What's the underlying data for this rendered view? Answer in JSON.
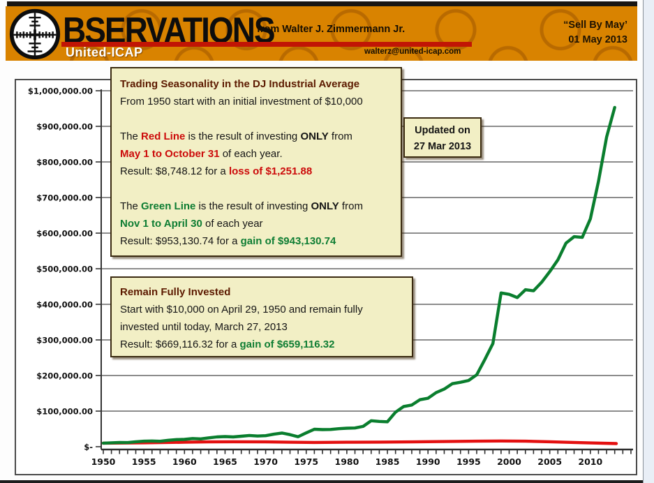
{
  "header": {
    "brand": "BSERVATIONS",
    "company": "United-ICAP",
    "byline": "from Walter J. Zimmermann Jr.",
    "email": "walterz@united-icap.com",
    "tagline": "“Sell By May’",
    "date": "01 May 2013"
  },
  "updated_box": {
    "line1": "Updated on",
    "line2": "27 Mar 2013"
  },
  "seasonality_box": {
    "lines": [
      [
        {
          "t": "Trading Seasonality in the DJ Industrial Average",
          "s": "title"
        }
      ],
      [
        {
          "t": "From 1950 start with an initial investment of $10,000",
          "s": "plain"
        }
      ],
      [],
      [
        {
          "t": "The ",
          "s": "plain"
        },
        {
          "t": "Red Line",
          "s": "redbold"
        },
        {
          "t": " is the result of investing ",
          "s": "plain"
        },
        {
          "t": "ONLY",
          "s": "bold"
        },
        {
          "t": " from",
          "s": "plain"
        }
      ],
      [
        {
          "t": "May 1 to October 31",
          "s": "redbold"
        },
        {
          "t": " of each year.",
          "s": "plain"
        }
      ],
      [
        {
          "t": "Result: $8,748.12 for a ",
          "s": "plain"
        },
        {
          "t": "loss of $1,251.88",
          "s": "redbold"
        }
      ],
      [],
      [
        {
          "t": "The ",
          "s": "plain"
        },
        {
          "t": "Green Line",
          "s": "greenbold"
        },
        {
          "t": " is the result of investing ",
          "s": "plain"
        },
        {
          "t": "ONLY",
          "s": "bold"
        },
        {
          "t": " from",
          "s": "plain"
        }
      ],
      [
        {
          "t": "Nov 1 to April 30",
          "s": "greenbold"
        },
        {
          "t": " of each year",
          "s": "plain"
        }
      ],
      [
        {
          "t": "Result: $953,130.74 for a ",
          "s": "plain"
        },
        {
          "t": "gain of $943,130.74",
          "s": "greenbold"
        }
      ]
    ]
  },
  "fully_invested_box": {
    "lines": [
      [
        {
          "t": "Remain Fully Invested",
          "s": "title"
        }
      ],
      [
        {
          "t": "Start with $10,000 on April 29, 1950 and remain fully",
          "s": "plain"
        }
      ],
      [
        {
          "t": "invested until today, March 27, 2013",
          "s": "plain"
        }
      ],
      [
        {
          "t": "Result: $669,116.32 for a ",
          "s": "plain"
        },
        {
          "t": "gain of $659,116.32",
          "s": "greenbold"
        }
      ]
    ]
  },
  "chart_data": {
    "type": "line",
    "title": "Trading Seasonality in the DJ Industrial Average",
    "xlabel": "",
    "ylabel": "",
    "xlim": [
      1950,
      2015.5
    ],
    "ylim": [
      0,
      1000000
    ],
    "grid": true,
    "legend_position": "none (described in annotation boxes)",
    "y_ticks": [
      {
        "value": 1000000,
        "label": "$1,000,000.00"
      },
      {
        "value": 900000,
        "label": "$900,000.00"
      },
      {
        "value": 800000,
        "label": "$800,000.00"
      },
      {
        "value": 700000,
        "label": "$700,000.00"
      },
      {
        "value": 600000,
        "label": "$600,000.00"
      },
      {
        "value": 500000,
        "label": "$500,000.00"
      },
      {
        "value": 400000,
        "label": "$400,000.00"
      },
      {
        "value": 300000,
        "label": "$300,000.00"
      },
      {
        "value": 200000,
        "label": "$200,000.00"
      },
      {
        "value": 100000,
        "label": "$100,000.00"
      },
      {
        "value": 0,
        "label": "$-"
      }
    ],
    "x_tick_labels": [
      1950,
      1955,
      1960,
      1965,
      1970,
      1975,
      1980,
      1985,
      1990,
      1995,
      2000,
      2005,
      2010
    ],
    "x_minor_tick_every_year": {
      "from": 1950,
      "to": 2015
    },
    "series": [
      {
        "name": "Green Line: invested ONLY Nov 1 to April 30 each year",
        "color": "#0a7e2e",
        "final_value": 953130.74,
        "x_start": 1950,
        "x_step": 1,
        "values": [
          10000,
          11000,
          11800,
          11500,
          14000,
          15500,
          16000,
          15200,
          18000,
          20000,
          20500,
          23000,
          22000,
          25000,
          27500,
          28500,
          27500,
          29500,
          31500,
          30000,
          31000,
          35000,
          38500,
          34000,
          28000,
          39000,
          49000,
          48000,
          48500,
          50500,
          52000,
          52500,
          57000,
          73000,
          71000,
          70000,
          97000,
          113000,
          117000,
          132000,
          136000,
          152000,
          162000,
          177000,
          181000,
          186000,
          202000,
          245000,
          290000,
          432000,
          428000,
          419000,
          441000,
          438000,
          462000,
          492000,
          525000,
          572000,
          590000,
          588000,
          640000,
          745000,
          870000,
          953131
        ]
      },
      {
        "name": "Red Line: invested ONLY May 1 to October 31 each year",
        "color": "#e31010",
        "final_value": 8748.12,
        "x": [
          1950,
          1955,
          1960,
          1963,
          1966,
          1970,
          1973,
          1976,
          1980,
          1984,
          1988,
          1992,
          1996,
          1999,
          2002,
          2005,
          2008,
          2010,
          2013.2
        ],
        "values": [
          10000,
          11000,
          12500,
          13500,
          14000,
          13500,
          12500,
          12000,
          12500,
          13000,
          13500,
          14500,
          15500,
          16000,
          15500,
          14000,
          12000,
          10500,
          8748
        ]
      }
    ]
  },
  "colors": {
    "header_orange": "#d98300",
    "stripe_red": "#c11505",
    "box_background": "#f2efc5",
    "box_border": "#3a2a10",
    "title_maroon": "#5c1a00",
    "text_red": "#cc0a0a",
    "text_green": "#0e7d33",
    "line_green": "#0a7e2e",
    "line_red": "#e31010",
    "grid_gray": "#8c8c8c",
    "axis_dark": "#333333"
  }
}
